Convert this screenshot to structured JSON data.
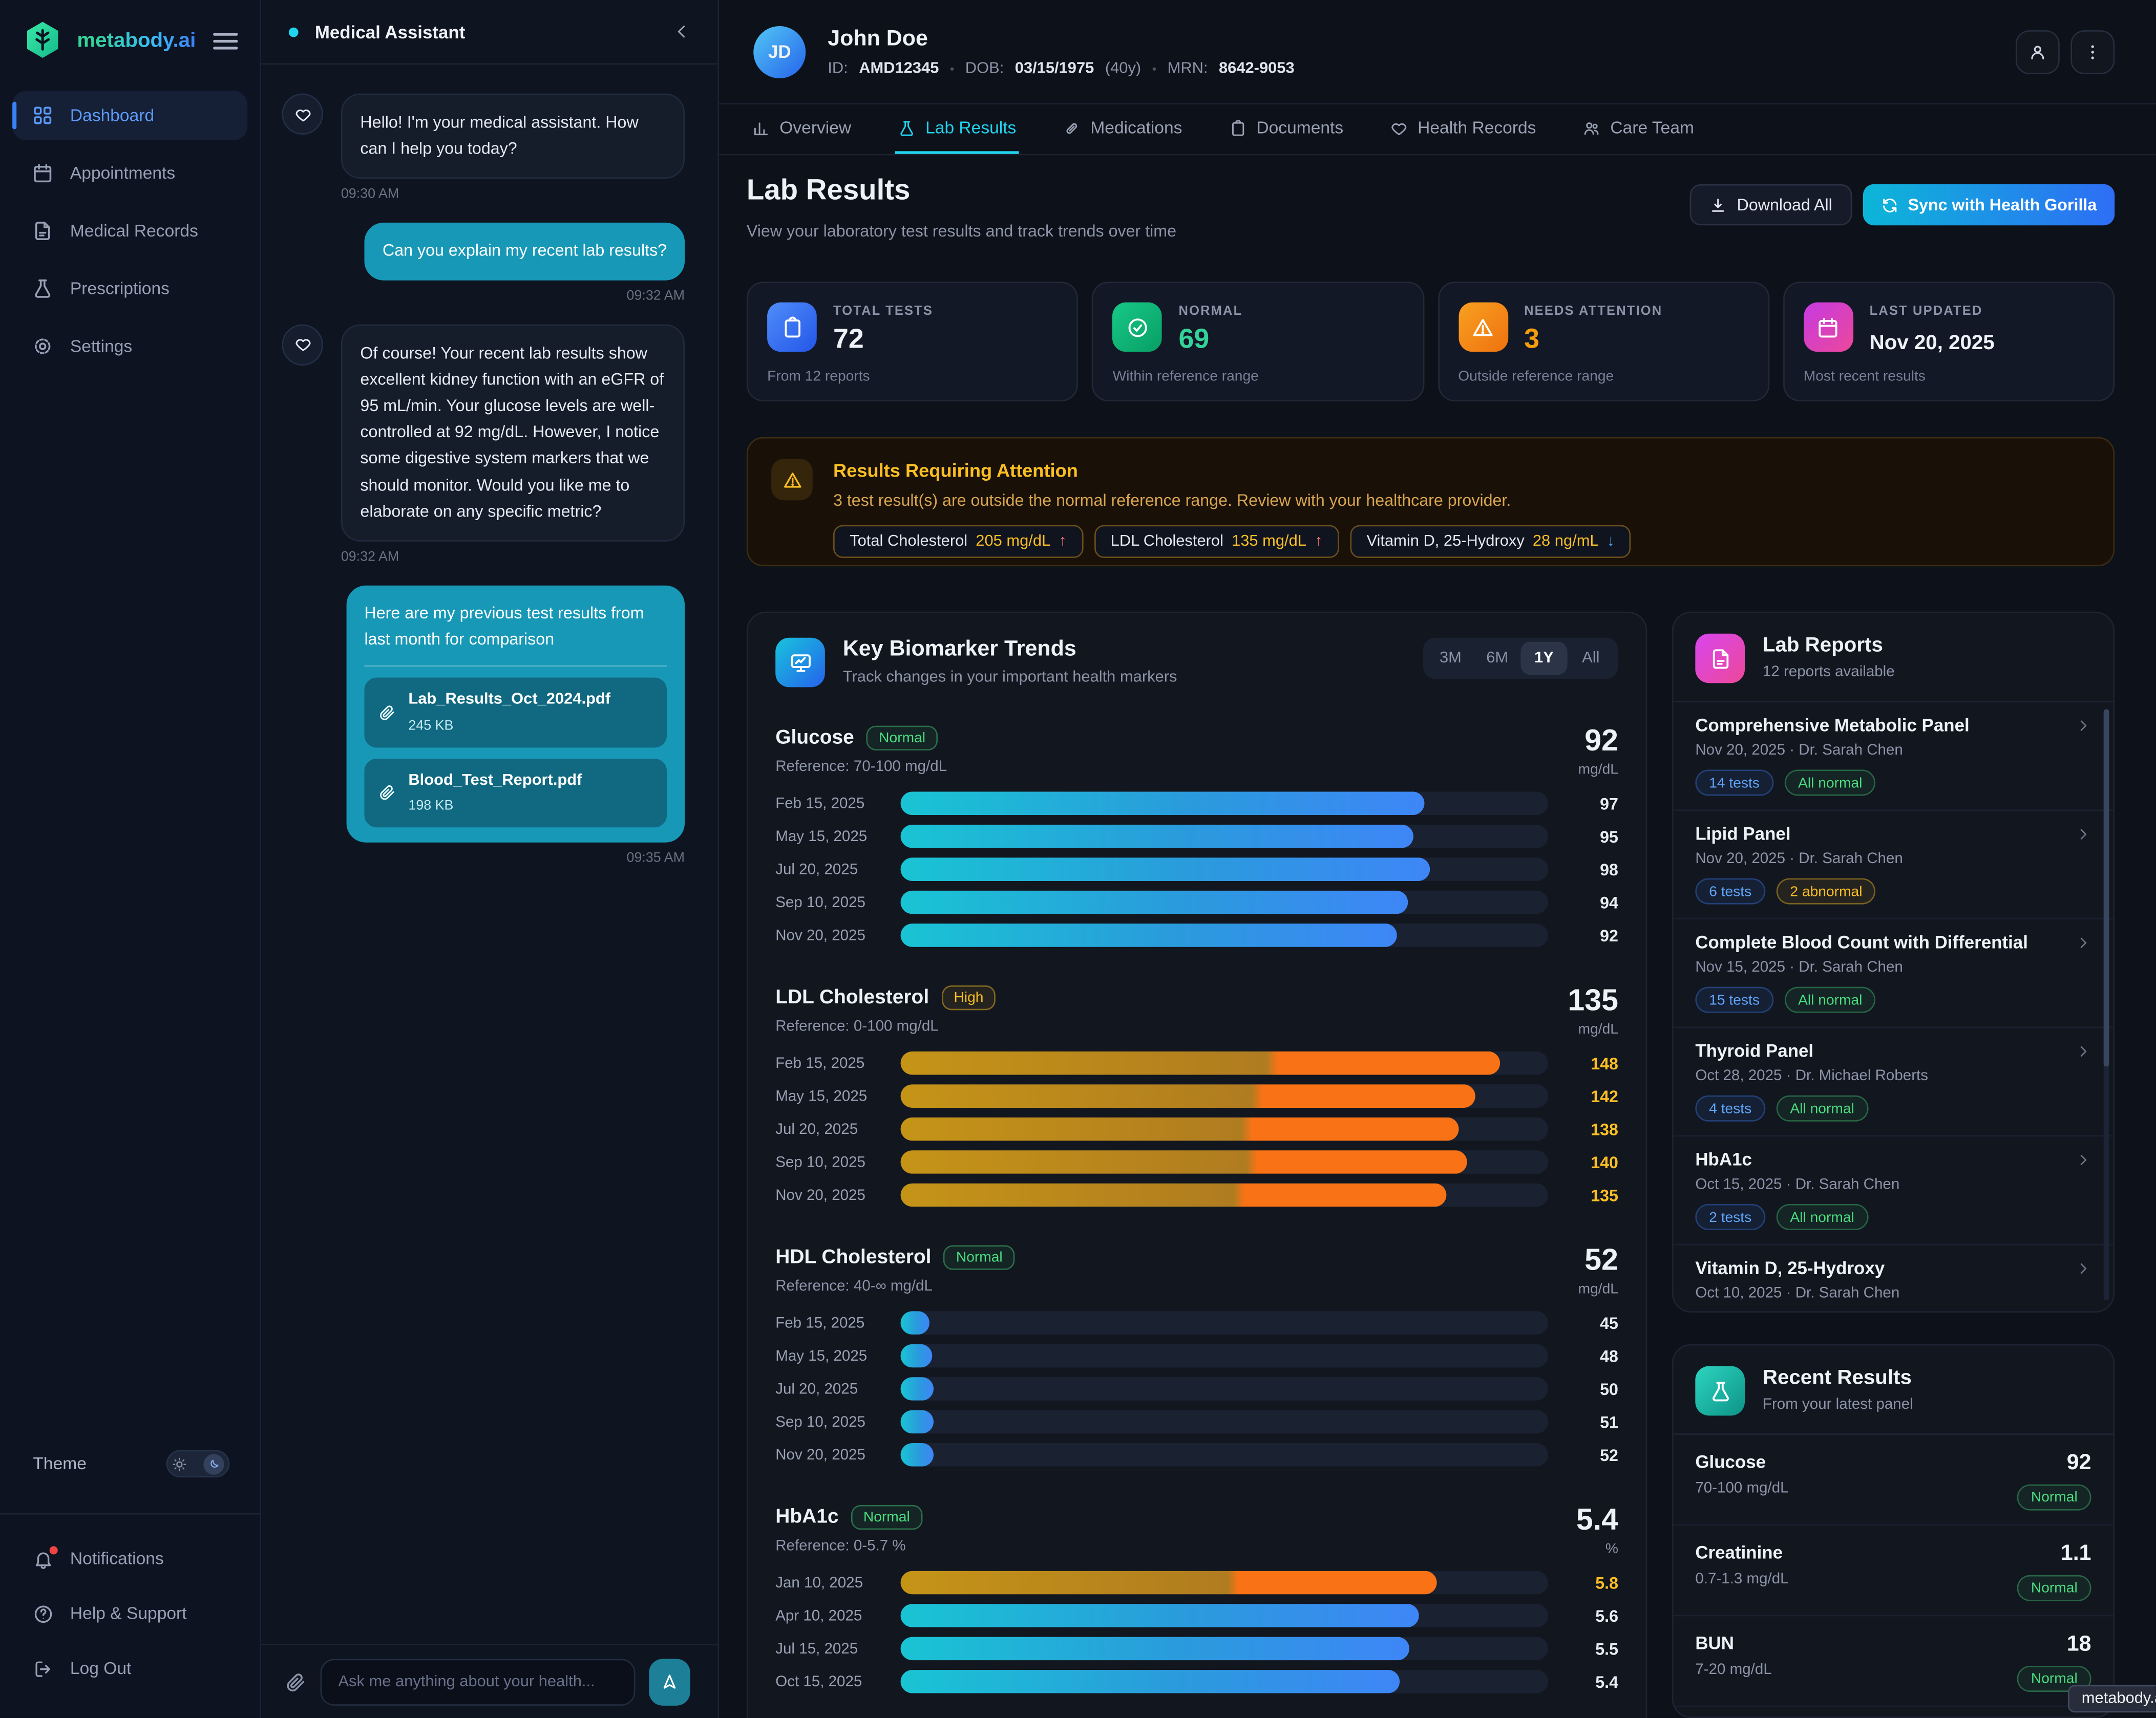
{
  "app": {
    "brand": "metabody.ai",
    "tooltip": "metabody.ai"
  },
  "sidebar": {
    "nav": [
      {
        "label": "Dashboard"
      },
      {
        "label": "Appointments"
      },
      {
        "label": "Medical Records"
      },
      {
        "label": "Prescriptions"
      },
      {
        "label": "Settings"
      }
    ],
    "theme_label": "Theme",
    "footer": [
      {
        "label": "Notifications"
      },
      {
        "label": "Help & Support"
      },
      {
        "label": "Log Out"
      }
    ]
  },
  "chat": {
    "title": "Medical Assistant",
    "messages": [
      {
        "role": "assistant",
        "text": "Hello! I'm your medical assistant. How can I help you today?",
        "time": "09:30 AM"
      },
      {
        "role": "user",
        "text": "Can you explain my recent lab results?",
        "time": "09:32 AM"
      },
      {
        "role": "assistant",
        "text": "Of course! Your recent lab results show excellent kidney function with an eGFR of 95 mL/min. Your glucose levels are well-controlled at 92 mg/dL. However, I notice some digestive system markers that we should monitor. Would you like me to elaborate on any specific metric?",
        "time": "09:32 AM"
      },
      {
        "role": "user",
        "text": "Here are my previous test results from last month for comparison",
        "time": "09:35 AM",
        "attachments": [
          {
            "name": "Lab_Results_Oct_2024.pdf",
            "size": "245 KB"
          },
          {
            "name": "Blood_Test_Report.pdf",
            "size": "198 KB"
          }
        ]
      }
    ],
    "input_placeholder": "Ask me anything about your health..."
  },
  "patient": {
    "initials": "JD",
    "name": "John Doe",
    "id_label": "ID:",
    "id": "AMD12345",
    "dob_label": "DOB:",
    "dob": "03/15/1975",
    "age": "(40y)",
    "mrn_label": "MRN:",
    "mrn": "8642-9053",
    "bullet": "•"
  },
  "tabs": [
    {
      "label": "Overview"
    },
    {
      "label": "Lab Results"
    },
    {
      "label": "Medications"
    },
    {
      "label": "Documents"
    },
    {
      "label": "Health Records"
    },
    {
      "label": "Care Team"
    }
  ],
  "page": {
    "title": "Lab Results",
    "subtitle": "View your laboratory test results and track trends over time",
    "download_label": "Download All",
    "sync_label": "Sync with Health Gorilla"
  },
  "stats": [
    {
      "label": "TOTAL TESTS",
      "value": "72",
      "sub": "From 12 reports"
    },
    {
      "label": "NORMAL",
      "value": "69",
      "sub": "Within reference range"
    },
    {
      "label": "NEEDS ATTENTION",
      "value": "3",
      "sub": "Outside reference range"
    },
    {
      "label": "LAST UPDATED",
      "value": "Nov 20, 2025",
      "sub": "Most recent results"
    }
  ],
  "alert": {
    "title": "Results Requiring Attention",
    "desc": "3 test result(s) are outside the normal reference range. Review with your healthcare provider.",
    "chips": [
      {
        "label": "Total Cholesterol",
        "value": "205 mg/dL",
        "arrow": "↑",
        "dir": "up"
      },
      {
        "label": "LDL Cholesterol",
        "value": "135 mg/dL",
        "arrow": "↑",
        "dir": "up"
      },
      {
        "label": "Vitamin D, 25-Hydroxy",
        "value": "28 ng/mL",
        "arrow": "↓",
        "dir": "down"
      }
    ]
  },
  "trends": {
    "title": "Key Biomarker Trends",
    "subtitle": "Track changes in your important health markers",
    "ranges": [
      "3M",
      "6M",
      "1Y",
      "All"
    ],
    "active_range": "1Y",
    "type": "bar",
    "biomarkers": [
      {
        "name": "Glucose",
        "badge": "Normal",
        "value": "92",
        "unit": "mg/dL",
        "reference": "Reference: 70-100 mg/dL",
        "scale_max": 120,
        "color": "blue",
        "points": [
          {
            "date": "Feb 15, 2025",
            "value": 97
          },
          {
            "date": "May 15, 2025",
            "value": 95
          },
          {
            "date": "Jul 20, 2025",
            "value": 98
          },
          {
            "date": "Sep 10, 2025",
            "value": 94
          },
          {
            "date": "Nov 20, 2025",
            "value": 92
          }
        ]
      },
      {
        "name": "LDL Cholesterol",
        "badge": "High",
        "value": "135",
        "unit": "mg/dL",
        "reference": "Reference: 0-100 mg/dL",
        "scale_max": 160,
        "color": "orange",
        "value_amber": true,
        "points": [
          {
            "date": "Feb 15, 2025",
            "value": 148
          },
          {
            "date": "May 15, 2025",
            "value": 142
          },
          {
            "date": "Jul 20, 2025",
            "value": 138
          },
          {
            "date": "Sep 10, 2025",
            "value": 140
          },
          {
            "date": "Nov 20, 2025",
            "value": 135
          }
        ]
      },
      {
        "name": "HDL Cholesterol",
        "badge": "Normal",
        "value": "52",
        "unit": "mg/dL",
        "reference": "Reference: 40-∞ mg/dL",
        "scale_max": 1000,
        "color": "blue",
        "points": [
          {
            "date": "Feb 15, 2025",
            "value": 45
          },
          {
            "date": "May 15, 2025",
            "value": 48
          },
          {
            "date": "Jul 20, 2025",
            "value": 50
          },
          {
            "date": "Sep 10, 2025",
            "value": 51
          },
          {
            "date": "Nov 20, 2025",
            "value": 52
          }
        ]
      },
      {
        "name": "HbA1c",
        "badge": "Normal",
        "value": "5.4",
        "unit": "%",
        "reference": "Reference: 0-5.7 %",
        "scale_max": 7,
        "color": "blue",
        "points": [
          {
            "date": "Jan 10, 2025",
            "value": 5.8,
            "high": true
          },
          {
            "date": "Apr 10, 2025",
            "value": 5.6
          },
          {
            "date": "Jul 15, 2025",
            "value": 5.5
          },
          {
            "date": "Oct 15, 2025",
            "value": 5.4
          }
        ]
      }
    ]
  },
  "reports": {
    "title": "Lab Reports",
    "subtitle": "12 reports available",
    "items": [
      {
        "title": "Comprehensive Metabolic Panel",
        "meta": "Nov 20, 2025 · Dr. Sarah Chen",
        "tests": "14 tests",
        "status": "All normal"
      },
      {
        "title": "Lipid Panel",
        "meta": "Nov 20, 2025 · Dr. Sarah Chen",
        "tests": "6 tests",
        "status": "2 abnormal"
      },
      {
        "title": "Complete Blood Count with Differential",
        "meta": "Nov 15, 2025 · Dr. Sarah Chen",
        "tests": "15 tests",
        "status": "All normal"
      },
      {
        "title": "Thyroid Panel",
        "meta": "Oct 28, 2025 · Dr. Michael Roberts",
        "tests": "4 tests",
        "status": "All normal"
      },
      {
        "title": "HbA1c",
        "meta": "Oct 15, 2025 · Dr. Sarah Chen",
        "tests": "2 tests",
        "status": "All normal"
      },
      {
        "title": "Vitamin D, 25-Hydroxy",
        "meta": "Oct 10, 2025 · Dr. Sarah Chen"
      }
    ]
  },
  "recent": {
    "title": "Recent Results",
    "subtitle": "From your latest panel",
    "items": [
      {
        "name": "Glucose",
        "range": "70-100 mg/dL",
        "value": "92",
        "badge": "Normal"
      },
      {
        "name": "Creatinine",
        "range": "0.7-1.3 mg/dL",
        "value": "1.1",
        "badge": "Normal"
      },
      {
        "name": "BUN",
        "range": "7-20 mg/dL",
        "value": "18",
        "badge": "Normal"
      }
    ]
  }
}
